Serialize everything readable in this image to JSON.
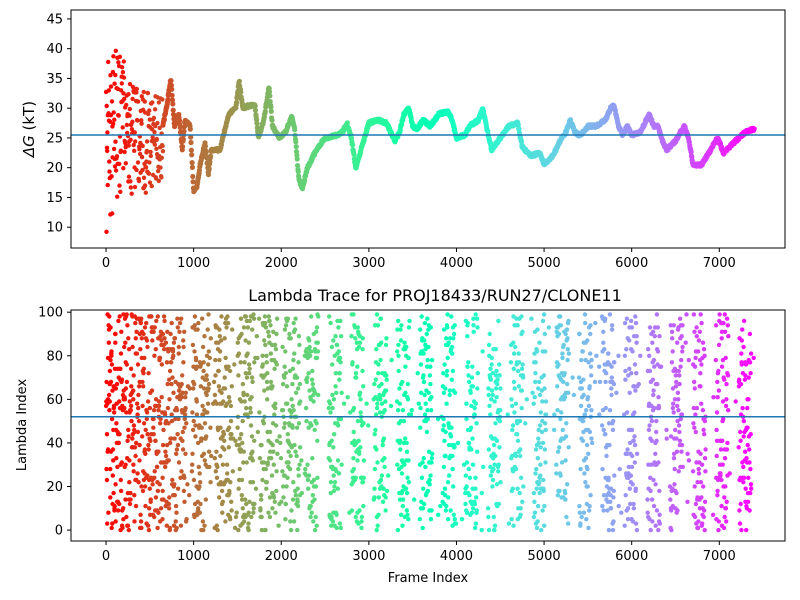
{
  "chart_data": [
    {
      "type": "line",
      "title": "",
      "xlabel": "",
      "ylabel_symbol": "ΔG",
      "ylabel_unit": " (kT)",
      "xlim": [
        -400,
        7750
      ],
      "ylim": [
        6.5,
        46.5
      ],
      "xticks": [
        0,
        1000,
        2000,
        3000,
        4000,
        5000,
        6000,
        7000
      ],
      "yticks": [
        10,
        15,
        20,
        25,
        30,
        35,
        40,
        45
      ],
      "hline": 25.5,
      "hline_color": "#1f77b4",
      "colormap": "rainbow (reversed by frame: early frames red, late frames violet)",
      "x_max_frame": 7400,
      "noisy_phase_end_frame": 650,
      "noisy_phase_ranges": [
        [
          0,
          7,
          44
        ],
        [
          200,
          15,
          38
        ],
        [
          400,
          15,
          33
        ],
        [
          650,
          18,
          32
        ]
      ],
      "series": [
        {
          "knots": [
            [
              650,
              27
            ],
            [
              700,
              31
            ],
            [
              740,
              35
            ],
            [
              780,
              27
            ],
            [
              830,
              29
            ],
            [
              870,
              23
            ],
            [
              900,
              28
            ],
            [
              960,
              27
            ],
            [
              1000,
              16
            ],
            [
              1040,
              17
            ],
            [
              1080,
              21
            ],
            [
              1130,
              24
            ],
            [
              1170,
              19
            ],
            [
              1200,
              23
            ],
            [
              1300,
              23
            ],
            [
              1400,
              29
            ],
            [
              1480,
              30
            ],
            [
              1520,
              34.5
            ],
            [
              1560,
              30
            ],
            [
              1650,
              30.5
            ],
            [
              1700,
              30.5
            ],
            [
              1740,
              25
            ],
            [
              1800,
              28
            ],
            [
              1860,
              33.5
            ],
            [
              1900,
              27
            ],
            [
              1980,
              25
            ],
            [
              2050,
              26
            ],
            [
              2120,
              28.5
            ],
            [
              2150,
              27
            ],
            [
              2200,
              18
            ],
            [
              2240,
              16.5
            ],
            [
              2300,
              20
            ],
            [
              2400,
              23
            ],
            [
              2500,
              25
            ],
            [
              2650,
              25.5
            ],
            [
              2700,
              26
            ],
            [
              2750,
              27.5
            ],
            [
              2800,
              25
            ],
            [
              2850,
              20
            ],
            [
              2950,
              25
            ],
            [
              3000,
              27.5
            ],
            [
              3100,
              28
            ],
            [
              3200,
              27.5
            ],
            [
              3300,
              24.5
            ],
            [
              3350,
              26
            ],
            [
              3400,
              29
            ],
            [
              3460,
              30
            ],
            [
              3500,
              27
            ],
            [
              3550,
              26.5
            ],
            [
              3620,
              28
            ],
            [
              3700,
              27
            ],
            [
              3800,
              29
            ],
            [
              3900,
              29.5
            ],
            [
              3950,
              28
            ],
            [
              4000,
              25
            ],
            [
              4100,
              25.5
            ],
            [
              4150,
              27
            ],
            [
              4250,
              28
            ],
            [
              4300,
              30
            ],
            [
              4400,
              23
            ],
            [
              4500,
              25
            ],
            [
              4600,
              27
            ],
            [
              4700,
              27.5
            ],
            [
              4750,
              23.5
            ],
            [
              4850,
              22
            ],
            [
              4950,
              22.5
            ],
            [
              5000,
              20.5
            ],
            [
              5100,
              22
            ],
            [
              5200,
              25
            ],
            [
              5250,
              26
            ],
            [
              5300,
              28
            ],
            [
              5350,
              26
            ],
            [
              5400,
              25.5
            ],
            [
              5450,
              26
            ],
            [
              5500,
              27
            ],
            [
              5600,
              27
            ],
            [
              5700,
              28
            ],
            [
              5760,
              30
            ],
            [
              5800,
              30.5
            ],
            [
              5850,
              27
            ],
            [
              5900,
              25.5
            ],
            [
              5950,
              27
            ],
            [
              6000,
              25.5
            ],
            [
              6100,
              26
            ],
            [
              6200,
              29
            ],
            [
              6250,
              27
            ],
            [
              6300,
              27
            ],
            [
              6350,
              24.5
            ],
            [
              6400,
              23
            ],
            [
              6500,
              24.5
            ],
            [
              6600,
              27
            ],
            [
              6650,
              25
            ],
            [
              6700,
              20.5
            ],
            [
              6800,
              20.5
            ],
            [
              6900,
              23
            ],
            [
              6980,
              25
            ],
            [
              7050,
              22.5
            ],
            [
              7150,
              24
            ],
            [
              7300,
              26
            ],
            [
              7400,
              26.5
            ]
          ]
        }
      ]
    },
    {
      "type": "scatter",
      "title": "Lambda Trace for PROJ18433/RUN27/CLONE11",
      "xlabel": "Frame Index",
      "ylabel": "Lambda Index",
      "xlim": [
        -400,
        7750
      ],
      "ylim": [
        -5,
        101
      ],
      "xticks": [
        0,
        1000,
        2000,
        3000,
        4000,
        5000,
        6000,
        7000
      ],
      "yticks": [
        0,
        20,
        40,
        60,
        80,
        100
      ],
      "hline": 52,
      "hline_color": "#1f77b4",
      "colormap": "rainbow (reversed by frame: early frames red, late frames violet)",
      "x_max_frame": 7400,
      "lambda_range": [
        0,
        99
      ],
      "approx_point_count": 7400
    }
  ]
}
